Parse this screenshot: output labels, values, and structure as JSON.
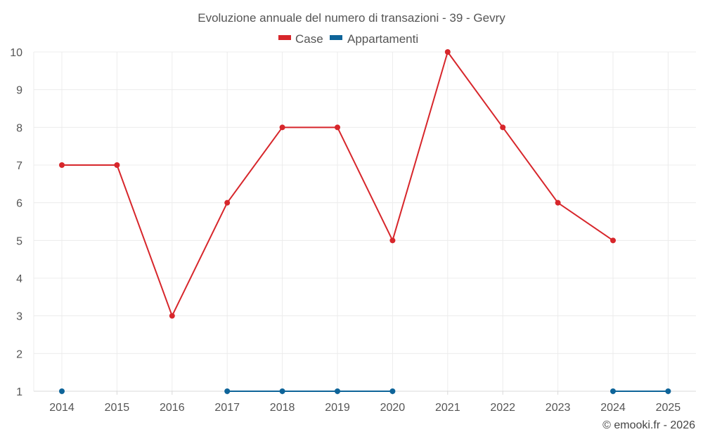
{
  "chart_data": {
    "type": "line",
    "title": "Evoluzione annuale del numero di transazioni - 39 - Gevry",
    "categories": [
      "2014",
      "2015",
      "2016",
      "2017",
      "2018",
      "2019",
      "2020",
      "2021",
      "2022",
      "2023",
      "2024",
      "2025"
    ],
    "y_ticks": [
      "1",
      "2",
      "3",
      "4",
      "5",
      "6",
      "7",
      "8",
      "9",
      "10"
    ],
    "ylim": [
      1,
      10
    ],
    "grid": true,
    "legend_position": "top-center",
    "series": [
      {
        "name": "Case",
        "color": "#d7262b",
        "values": [
          7,
          7,
          3,
          6,
          8,
          8,
          5,
          10,
          8,
          6,
          5,
          null
        ]
      },
      {
        "name": "Appartamenti",
        "color": "#0e6499",
        "values": [
          1,
          null,
          null,
          1,
          1,
          1,
          1,
          null,
          null,
          null,
          1,
          1
        ]
      }
    ]
  },
  "credit": "© emooki.fr - 2026"
}
